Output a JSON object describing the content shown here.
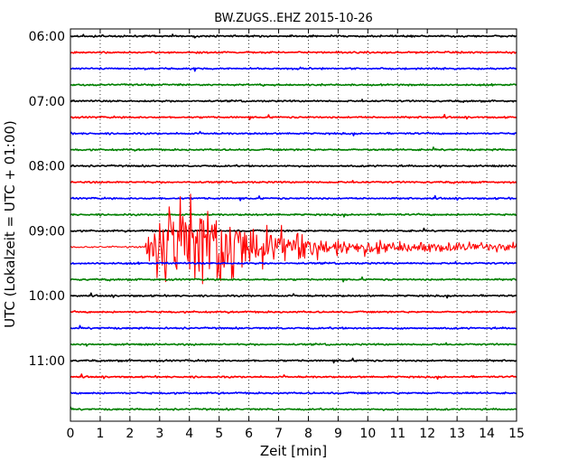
{
  "chart_data": {
    "type": "line",
    "title": "BW.ZUGS..EHZ 2015-10-26",
    "xlabel": "Zeit  [min]",
    "ylabel": "UTC (Lokalzeit = UTC + 01:00)",
    "xlim": [
      0,
      15
    ],
    "x_ticks": [
      0,
      1,
      2,
      3,
      4,
      5,
      6,
      7,
      8,
      9,
      10,
      11,
      12,
      13,
      14,
      15
    ],
    "y_tick_labels": [
      "06:00",
      "07:00",
      "08:00",
      "09:00",
      "10:00",
      "11:00"
    ],
    "grid": "vertical dotted",
    "color_cycle": [
      "#000000",
      "#ff0000",
      "#0000ff",
      "#008000"
    ],
    "series": [
      {
        "start": "06:00",
        "color": "#000000"
      },
      {
        "start": "06:15",
        "color": "#ff0000"
      },
      {
        "start": "06:30",
        "color": "#0000ff"
      },
      {
        "start": "06:45",
        "color": "#008000"
      },
      {
        "start": "07:00",
        "color": "#000000"
      },
      {
        "start": "07:15",
        "color": "#ff0000"
      },
      {
        "start": "07:30",
        "color": "#0000ff"
      },
      {
        "start": "07:45",
        "color": "#008000"
      },
      {
        "start": "08:00",
        "color": "#000000"
      },
      {
        "start": "08:15",
        "color": "#ff0000"
      },
      {
        "start": "08:30",
        "color": "#0000ff"
      },
      {
        "start": "08:45",
        "color": "#008000"
      },
      {
        "start": "09:00",
        "color": "#000000"
      },
      {
        "start": "09:15",
        "color": "#ff0000",
        "event": {
          "onset_min": 2.5,
          "peak_min": [
            3.0,
            5.5
          ],
          "coda_end_min": 15
        }
      },
      {
        "start": "09:30",
        "color": "#0000ff"
      },
      {
        "start": "09:45",
        "color": "#008000"
      },
      {
        "start": "10:00",
        "color": "#000000"
      },
      {
        "start": "10:15",
        "color": "#ff0000"
      },
      {
        "start": "10:30",
        "color": "#0000ff"
      },
      {
        "start": "10:45",
        "color": "#008000"
      },
      {
        "start": "11:00",
        "color": "#000000"
      },
      {
        "start": "11:15",
        "color": "#ff0000"
      },
      {
        "start": "11:30",
        "color": "#0000ff"
      },
      {
        "start": "11:45",
        "color": "#008000"
      }
    ]
  }
}
